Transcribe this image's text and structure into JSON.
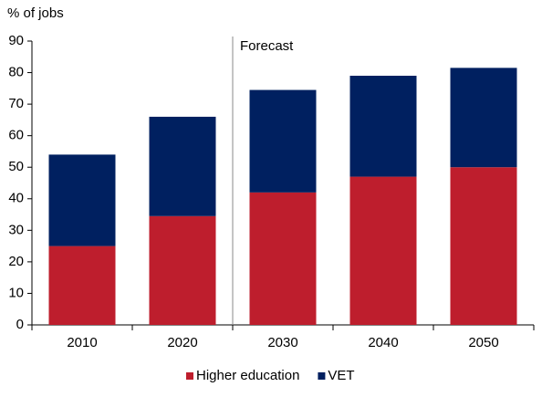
{
  "chart_data": {
    "type": "stacked_bar",
    "y_label": "% of jobs",
    "annotation": "Forecast",
    "categories": [
      "2010",
      "2020",
      "2030",
      "2040",
      "2050"
    ],
    "series": [
      {
        "name": "Higher education",
        "color": "#be1e2d",
        "values": [
          25,
          34.5,
          42,
          47,
          50
        ]
      },
      {
        "name": "VET",
        "color": "#002060",
        "values": [
          29,
          31.5,
          32.5,
          32,
          31.5
        ]
      }
    ],
    "ylim": [
      0,
      90
    ],
    "yticks": [
      0,
      10,
      20,
      30,
      40,
      50,
      60,
      70,
      80,
      90
    ],
    "grid": false,
    "legend": "bottom"
  }
}
